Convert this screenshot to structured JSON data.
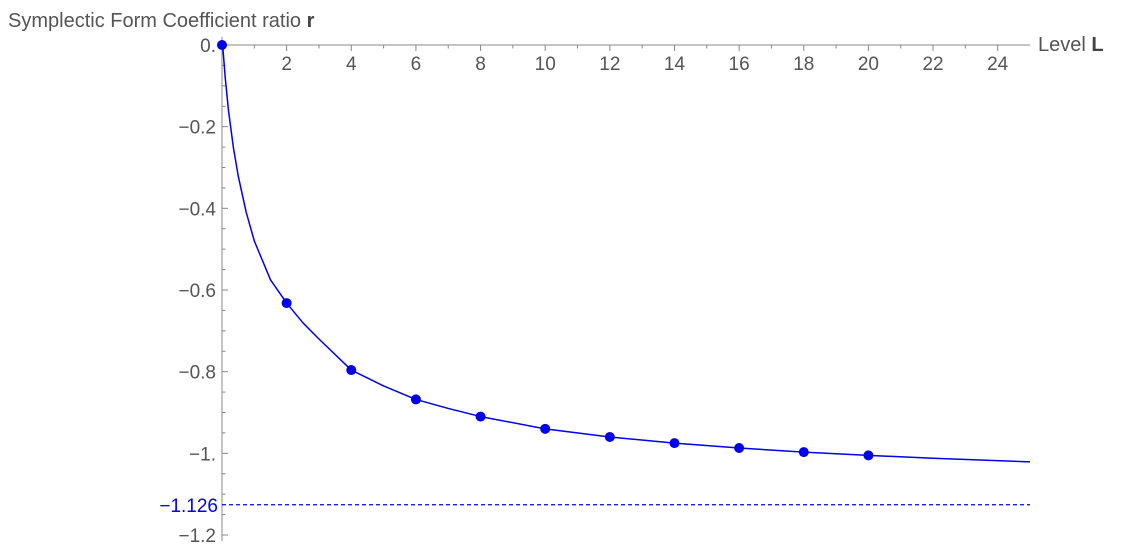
{
  "chart_data": {
    "type": "scatter",
    "title": "Symplectic Form Coefficient ratio",
    "title_bold_symbol": "r",
    "xlabel": "Level",
    "xlabel_bold_symbol": "L",
    "ylabel": "",
    "xlim": [
      0,
      25
    ],
    "ylim": [
      -1.2,
      0.02
    ],
    "x_ticks": [
      2,
      4,
      6,
      8,
      10,
      12,
      14,
      16,
      18,
      20,
      22,
      24
    ],
    "x_tick_labels": [
      "2",
      "4",
      "6",
      "8",
      "10",
      "12",
      "14",
      "16",
      "18",
      "20",
      "22",
      "24"
    ],
    "y_ticks": [
      0,
      -0.2,
      -0.4,
      -0.6,
      -0.8,
      -1.0,
      -1.2
    ],
    "y_tick_labels": [
      "0.",
      "−0.2",
      "−0.4",
      "−0.6",
      "−0.8",
      "−1.",
      "−1.2"
    ],
    "series": [
      {
        "x": [
          0,
          2,
          4,
          6,
          8,
          10,
          12,
          14,
          16,
          18,
          20
        ],
        "y": [
          0.0,
          -0.632,
          -0.796,
          -0.868,
          -0.91,
          -0.94,
          -0.96,
          -0.975,
          -0.987,
          -0.997,
          -1.005
        ]
      }
    ],
    "fit_curve_x": [
      0.02,
      0.1,
      0.2,
      0.35,
      0.5,
      0.75,
      1,
      1.5,
      2,
      2.5,
      3,
      4,
      5,
      6,
      7,
      8,
      10,
      12,
      14,
      16,
      18,
      20,
      22,
      25
    ],
    "fit_curve_y": [
      0.0,
      -0.08,
      -0.16,
      -0.25,
      -0.32,
      -0.41,
      -0.48,
      -0.575,
      -0.632,
      -0.68,
      -0.72,
      -0.796,
      -0.835,
      -0.868,
      -0.89,
      -0.91,
      -0.94,
      -0.96,
      -0.975,
      -0.987,
      -0.997,
      -1.005,
      -1.012,
      -1.021
    ],
    "asymptote": {
      "y": -1.126,
      "label": "−1.126",
      "style": "dashed"
    },
    "colors": {
      "series": "#0000ee",
      "axis": "#888888",
      "text": "#555555",
      "asymptote": "#0000ee"
    },
    "grid": false,
    "legend": "none"
  }
}
